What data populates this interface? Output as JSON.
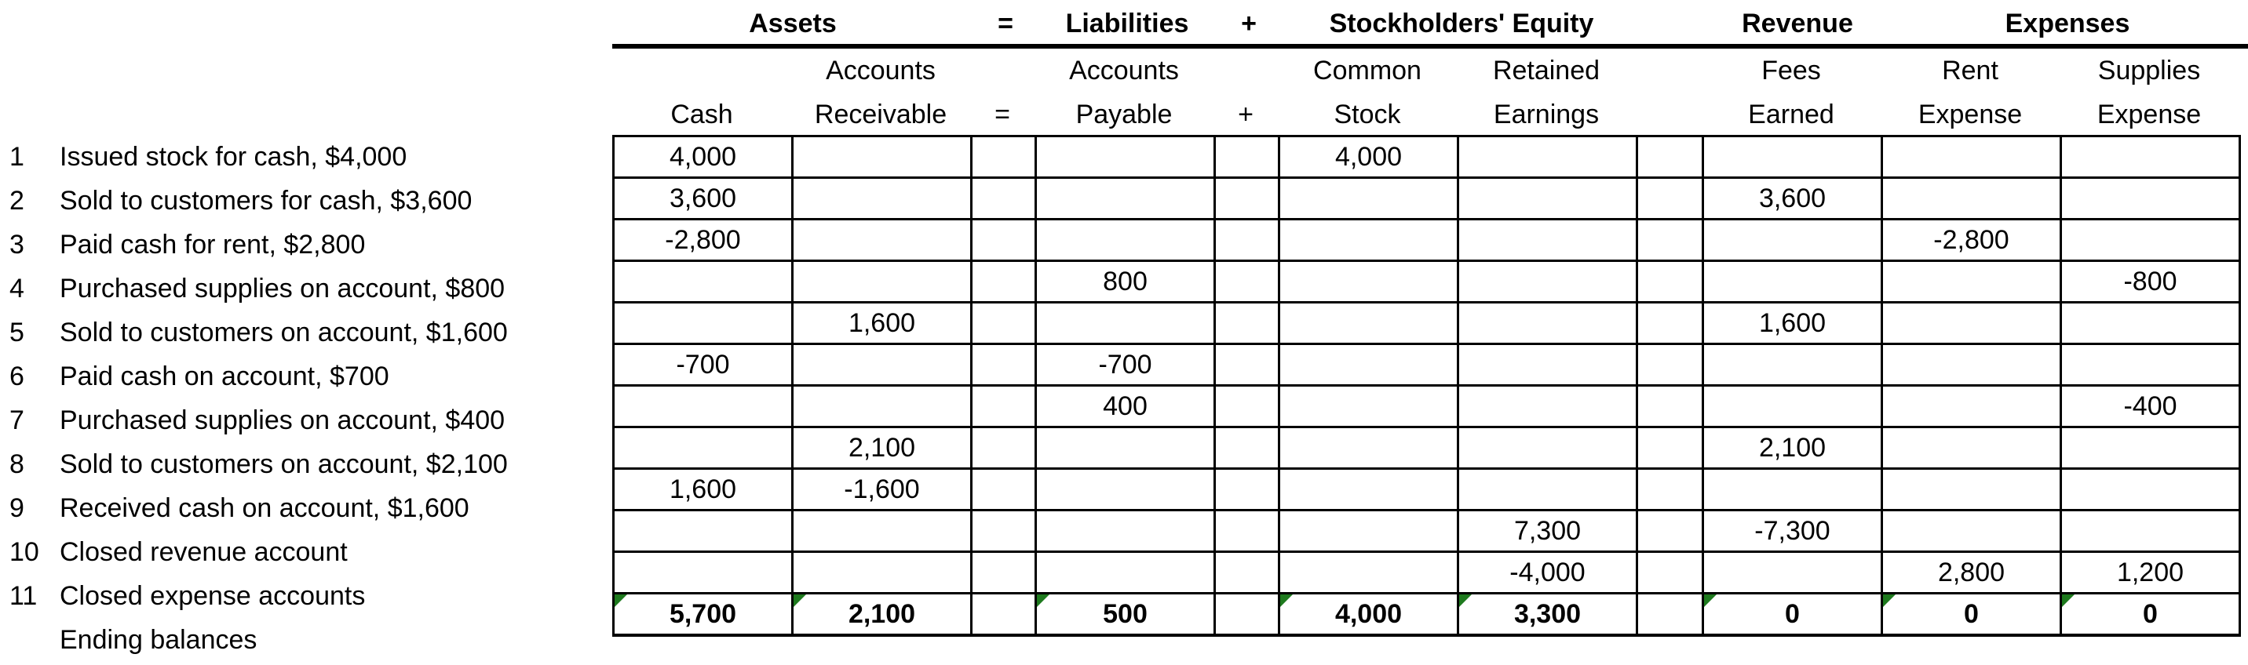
{
  "sections": {
    "assets": "Assets",
    "eq1": "=",
    "liabilities": "Liabilities",
    "plus1": "+",
    "equity": "Stockholders' Equity",
    "revenue": "Revenue",
    "expenses": "Expenses"
  },
  "columns": {
    "cash": [
      "",
      "Cash"
    ],
    "ar": [
      "Accounts",
      "Receivable"
    ],
    "eq": [
      "",
      "="
    ],
    "ap": [
      "Accounts",
      "Payable"
    ],
    "plus": [
      "",
      "+"
    ],
    "cs": [
      "Common",
      "Stock"
    ],
    "re": [
      "Retained",
      "Earnings"
    ],
    "fees": [
      "Fees",
      "Earned"
    ],
    "rent": [
      "Rent",
      "Expense"
    ],
    "supplies": [
      "Supplies",
      "Expense"
    ]
  },
  "transactions": [
    {
      "num": "1",
      "desc": "Issued stock for cash, $4,000",
      "cash": "4,000",
      "ar": "",
      "ap": "",
      "cs": "4,000",
      "re": "",
      "fees": "",
      "rent": "",
      "supplies": ""
    },
    {
      "num": "2",
      "desc": "Sold to customers for cash, $3,600",
      "cash": "3,600",
      "ar": "",
      "ap": "",
      "cs": "",
      "re": "",
      "fees": "3,600",
      "rent": "",
      "supplies": ""
    },
    {
      "num": "3",
      "desc": "Paid cash for rent, $2,800",
      "cash": "-2,800",
      "ar": "",
      "ap": "",
      "cs": "",
      "re": "",
      "fees": "",
      "rent": "-2,800",
      "supplies": ""
    },
    {
      "num": "4",
      "desc": "Purchased supplies on account, $800",
      "cash": "",
      "ar": "",
      "ap": "800",
      "cs": "",
      "re": "",
      "fees": "",
      "rent": "",
      "supplies": "-800"
    },
    {
      "num": "5",
      "desc": "Sold to customers on account, $1,600",
      "cash": "",
      "ar": "1,600",
      "ap": "",
      "cs": "",
      "re": "",
      "fees": "1,600",
      "rent": "",
      "supplies": ""
    },
    {
      "num": "6",
      "desc": "Paid cash on account, $700",
      "cash": "-700",
      "ar": "",
      "ap": "-700",
      "cs": "",
      "re": "",
      "fees": "",
      "rent": "",
      "supplies": ""
    },
    {
      "num": "7",
      "desc": "Purchased supplies on account, $400",
      "cash": "",
      "ar": "",
      "ap": "400",
      "cs": "",
      "re": "",
      "fees": "",
      "rent": "",
      "supplies": "-400"
    },
    {
      "num": "8",
      "desc": "Sold to customers on account, $2,100",
      "cash": "",
      "ar": "2,100",
      "ap": "",
      "cs": "",
      "re": "",
      "fees": "2,100",
      "rent": "",
      "supplies": ""
    },
    {
      "num": "9",
      "desc": "Received cash on account, $1,600",
      "cash": "1,600",
      "ar": "-1,600",
      "ap": "",
      "cs": "",
      "re": "",
      "fees": "",
      "rent": "",
      "supplies": ""
    },
    {
      "num": "10",
      "desc": "Closed revenue account",
      "cash": "",
      "ar": "",
      "ap": "",
      "cs": "",
      "re": "7,300",
      "fees": "-7,300",
      "rent": "",
      "supplies": ""
    },
    {
      "num": "11",
      "desc": "Closed expense accounts",
      "cash": "",
      "ar": "",
      "ap": "",
      "cs": "",
      "re": "-4,000",
      "fees": "",
      "rent": "2,800",
      "supplies": "1,200"
    }
  ],
  "ending": {
    "num": "",
    "desc": "Ending balances",
    "cash": "5,700",
    "ar": "2,100",
    "ap": "500",
    "cs": "4,000",
    "re": "3,300",
    "fees": "0",
    "rent": "0",
    "supplies": "0"
  },
  "colors": {
    "marker": "#1e7a1e",
    "lines": "#000000"
  }
}
